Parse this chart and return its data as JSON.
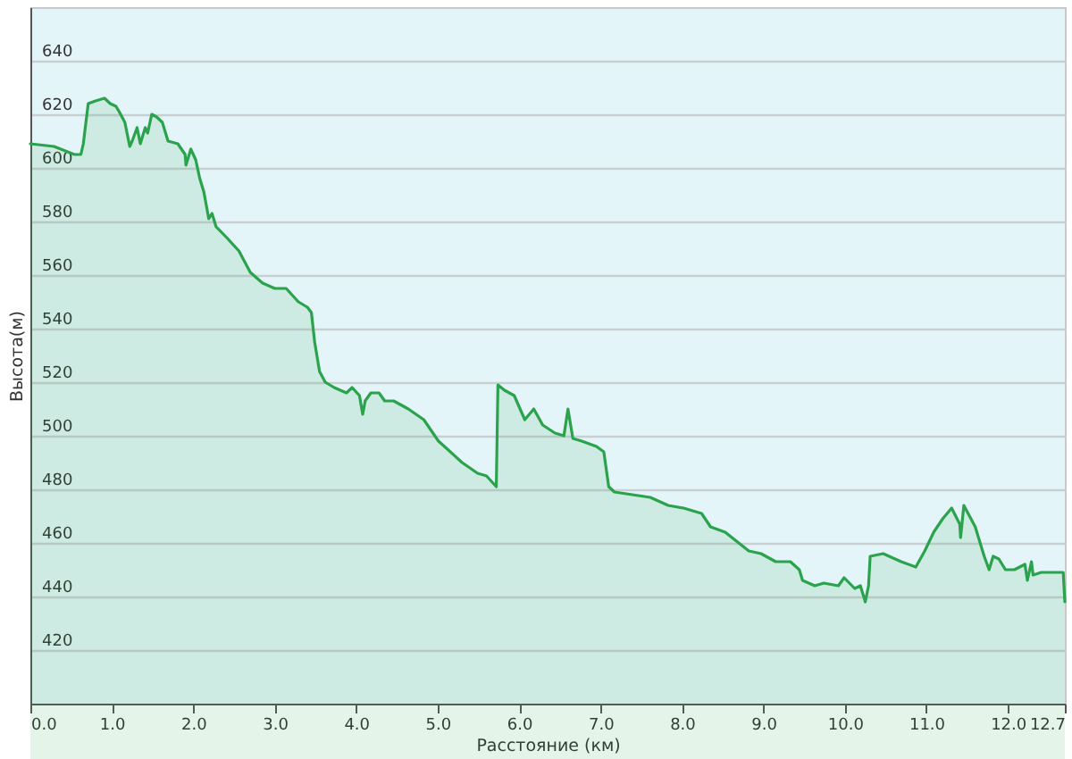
{
  "chart_data": {
    "type": "area",
    "xlabel": "Расстояние (км)",
    "ylabel": "Высота(м)",
    "xlim": [
      0,
      12.7
    ],
    "ylim": [
      400,
      660
    ],
    "xticks": [
      {
        "value": 0,
        "label": "0.0"
      },
      {
        "value": 1,
        "label": "1.0"
      },
      {
        "value": 2,
        "label": "2.0"
      },
      {
        "value": 3,
        "label": "3.0"
      },
      {
        "value": 4,
        "label": "4.0"
      },
      {
        "value": 5,
        "label": "5.0"
      },
      {
        "value": 6,
        "label": "6.0"
      },
      {
        "value": 7,
        "label": "7.0"
      },
      {
        "value": 8,
        "label": "8.0"
      },
      {
        "value": 9,
        "label": "9.0"
      },
      {
        "value": 10,
        "label": "10.0"
      },
      {
        "value": 11,
        "label": "11.0"
      },
      {
        "value": 12,
        "label": "12.0"
      },
      12.7
    ],
    "yticks": [
      420,
      440,
      460,
      480,
      500,
      520,
      540,
      560,
      580,
      600,
      620,
      640
    ],
    "grid": "y",
    "x": [
      0,
      0.29,
      0.54,
      0.62,
      0.65,
      0.71,
      0.8,
      0.91,
      0.98,
      1.05,
      1.09,
      1.16,
      1.22,
      1.25,
      1.31,
      1.35,
      1.41,
      1.44,
      1.49,
      1.55,
      1.62,
      1.69,
      1.81,
      1.9,
      1.91,
      1.97,
      2.03,
      2.08,
      2.13,
      2.19,
      2.23,
      2.28,
      2.41,
      2.56,
      2.7,
      2.85,
      3.0,
      3.14,
      3.29,
      3.4,
      3.45,
      3.49,
      3.55,
      3.62,
      3.73,
      3.88,
      3.95,
      4.04,
      4.08,
      4.11,
      4.18,
      4.28,
      4.35,
      4.46,
      4.64,
      4.83,
      5.01,
      5.12,
      5.3,
      5.49,
      5.6,
      5.69,
      5.72,
      5.74,
      5.82,
      5.94,
      6.07,
      6.18,
      6.29,
      6.44,
      6.55,
      6.6,
      6.66,
      6.77,
      6.95,
      7.04,
      7.1,
      7.17,
      7.39,
      7.61,
      7.83,
      8.02,
      8.24,
      8.35,
      8.53,
      8.82,
      8.97,
      9.15,
      9.33,
      9.44,
      9.48,
      9.63,
      9.74,
      9.92,
      9.99,
      10.12,
      10.19,
      10.25,
      10.29,
      10.31,
      10.47,
      10.69,
      10.87,
      10.98,
      11.09,
      11.2,
      11.31,
      11.41,
      11.42,
      11.46,
      11.53,
      11.6,
      11.71,
      11.77,
      11.82,
      11.89,
      11.97,
      12.08,
      12.21,
      12.24,
      12.29,
      12.31,
      12.41,
      12.55,
      12.68,
      12.7
    ],
    "series": [
      {
        "color": "#2ba24c",
        "values": [
          609,
          608,
          605,
          605,
          609,
          624,
          625,
          626,
          624,
          623,
          621,
          617,
          608,
          610,
          615,
          609,
          615,
          613,
          620,
          619,
          617,
          610,
          609,
          605,
          601,
          607,
          603,
          596,
          591,
          581,
          583,
          578,
          574,
          569,
          561,
          557,
          555,
          555,
          550,
          548,
          546,
          535,
          524,
          520,
          518,
          516,
          518,
          515,
          508,
          513,
          516,
          516,
          513,
          513,
          510,
          506,
          498,
          495,
          490,
          486,
          485,
          482,
          481,
          519,
          517,
          515,
          506,
          510,
          504,
          501,
          500,
          510,
          499,
          498,
          496,
          494,
          481,
          479,
          478,
          477,
          474,
          473,
          471,
          466,
          464,
          457,
          456,
          453,
          453,
          450,
          446,
          444,
          445,
          444,
          447,
          443,
          444,
          438,
          444,
          455,
          456,
          453,
          451,
          457,
          464,
          469,
          473,
          467,
          462,
          474,
          470,
          466,
          455,
          450,
          455,
          454,
          450,
          450,
          452,
          446,
          453,
          448,
          449,
          449,
          449,
          438
        ]
      }
    ]
  }
}
